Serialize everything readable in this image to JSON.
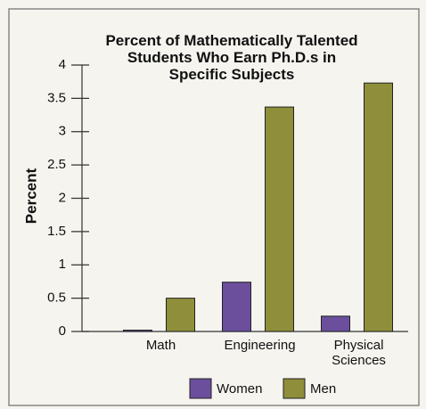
{
  "chart_data": {
    "type": "bar",
    "title": "Percent of Mathematically Talented Students Who Earn Ph.D.s in Specific Subjects",
    "y_label": "Percent",
    "categories": [
      "Math",
      "Engineering",
      "Physical Sciences"
    ],
    "series": [
      {
        "name": "Women",
        "color": "#6b4f9c",
        "values": [
          0.02,
          0.74,
          0.23
        ]
      },
      {
        "name": "Men",
        "color": "#8f8e3a",
        "values": [
          0.5,
          3.37,
          3.73
        ]
      }
    ],
    "ylim": [
      0,
      4
    ],
    "yticks": [
      0,
      0.5,
      1,
      1.5,
      2,
      2.5,
      3,
      3.5,
      4
    ],
    "legend": "bottom"
  }
}
